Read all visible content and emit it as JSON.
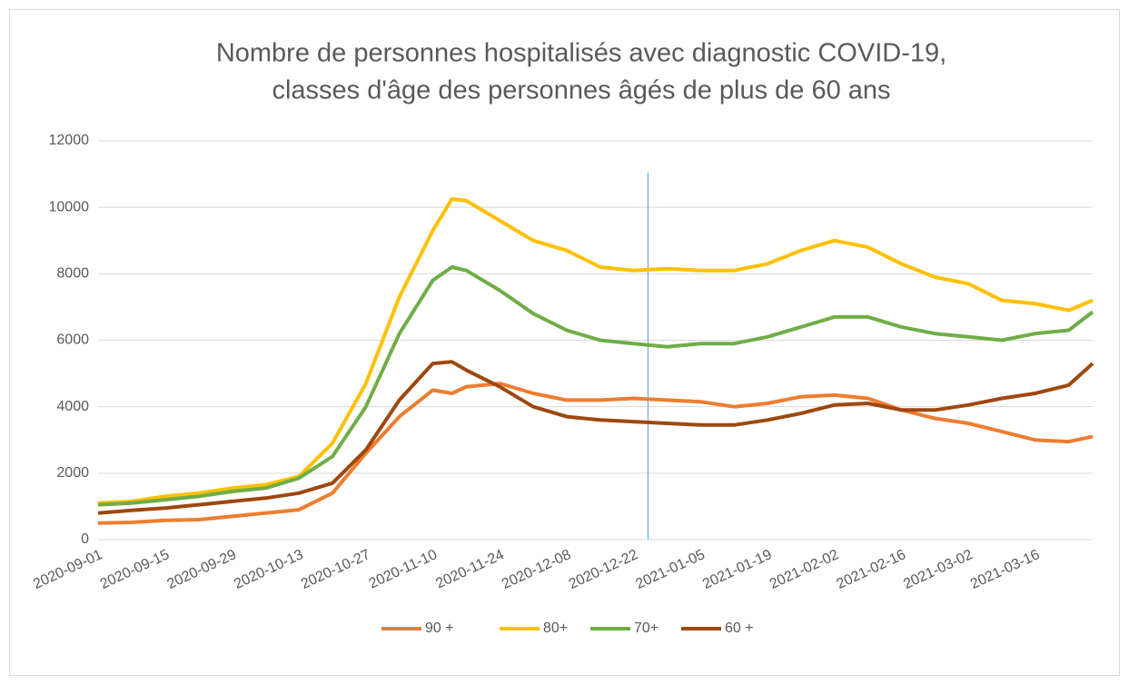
{
  "chart_data": {
    "type": "line",
    "title": [
      "Nombre de personnes hospitalisés avec diagnostic COVID-19,",
      "classes d'âge des personnes âgés de plus de 60 ans"
    ],
    "x": [
      "2020-09-01",
      "2020-09-08",
      "2020-09-15",
      "2020-09-22",
      "2020-09-29",
      "2020-10-06",
      "2020-10-13",
      "2020-10-20",
      "2020-10-27",
      "2020-11-03",
      "2020-11-10",
      "2020-11-14",
      "2020-11-17",
      "2020-11-24",
      "2020-12-01",
      "2020-12-08",
      "2020-12-15",
      "2020-12-22",
      "2020-12-29",
      "2021-01-05",
      "2021-01-12",
      "2021-01-19",
      "2021-01-26",
      "2021-02-02",
      "2021-02-09",
      "2021-02-16",
      "2021-02-23",
      "2021-03-02",
      "2021-03-09",
      "2021-03-16",
      "2021-03-23",
      "2021-03-28"
    ],
    "series": [
      {
        "name": "90 +",
        "color": "#ed7d31",
        "values": [
          500,
          520,
          580,
          600,
          700,
          800,
          900,
          1400,
          2600,
          3700,
          4500,
          4400,
          4600,
          4700,
          4400,
          4200,
          4200,
          4250,
          4200,
          4150,
          4000,
          4100,
          4300,
          4350,
          4250,
          3900,
          3650,
          3500,
          3250,
          3000,
          2950,
          3100
        ]
      },
      {
        "name": "80+",
        "color": "#ffc000",
        "values": [
          1100,
          1150,
          1300,
          1400,
          1550,
          1650,
          1900,
          2900,
          4700,
          7300,
          9300,
          10250,
          10200,
          9600,
          9000,
          8700,
          8200,
          8100,
          8150,
          8100,
          8100,
          8300,
          8700,
          9000,
          8800,
          8300,
          7900,
          7700,
          7200,
          7100,
          6900,
          7200
        ]
      },
      {
        "name": "70+",
        "color": "#70ad47",
        "values": [
          1050,
          1100,
          1200,
          1300,
          1450,
          1550,
          1850,
          2500,
          4000,
          6200,
          7800,
          8200,
          8100,
          7500,
          6800,
          6300,
          6000,
          5900,
          5800,
          5900,
          5900,
          6100,
          6400,
          6700,
          6700,
          6400,
          6200,
          6100,
          6000,
          6200,
          6300,
          6850
        ]
      },
      {
        "name": "60 +",
        "color": "#9e480e",
        "values": [
          800,
          880,
          950,
          1050,
          1150,
          1250,
          1400,
          1700,
          2700,
          4200,
          5300,
          5350,
          5100,
          4600,
          4000,
          3700,
          3600,
          3550,
          3500,
          3450,
          3450,
          3600,
          3800,
          4050,
          4100,
          3900,
          3900,
          4050,
          4250,
          4400,
          4650,
          5300
        ]
      }
    ],
    "xlim": [
      "2020-09-01",
      "2021-03-28"
    ],
    "xticks": [
      "2020-09-01",
      "2020-09-15",
      "2020-09-29",
      "2020-10-13",
      "2020-10-27",
      "2020-11-10",
      "2020-11-24",
      "2020-12-08",
      "2020-12-22",
      "2021-01-05",
      "2021-01-19",
      "2021-02-02",
      "2021-02-16",
      "2021-03-02",
      "2021-03-16"
    ],
    "ylim": [
      0,
      12000
    ],
    "yticks": [
      0,
      2000,
      4000,
      6000,
      8000,
      10000,
      12000
    ],
    "grid": true,
    "vline": {
      "x": "2020-12-25",
      "color": "#5b9bd5"
    },
    "legend": "bottom"
  }
}
